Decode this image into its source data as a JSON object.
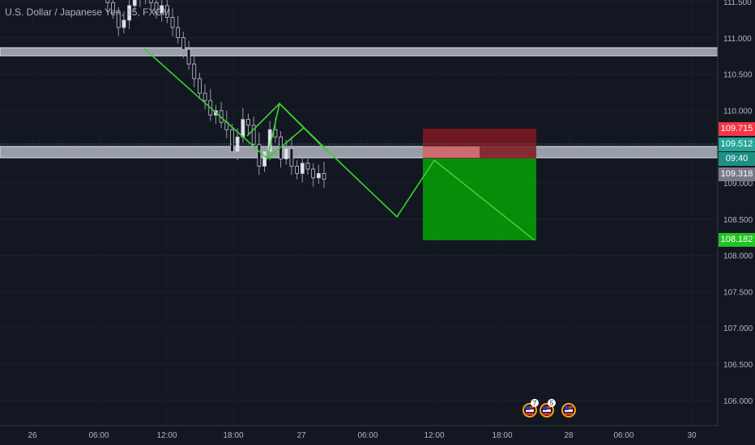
{
  "symbol_title": "U.S. Dollar / Japanese Yen, 15, FXCM",
  "price_axis": {
    "ticks": [
      "111.500",
      "111.000",
      "110.500",
      "110.000",
      "109.500",
      "109.000",
      "108.500",
      "108.000",
      "107.500",
      "107.000",
      "106.500",
      "106.000"
    ],
    "badges": {
      "stop": {
        "label": "109.715",
        "color": "#f23645"
      },
      "current": {
        "label": "109.512",
        "color": "#26a69a"
      },
      "countdown": {
        "label": "09:40",
        "color": "#26a69a"
      },
      "entry": {
        "label": "109.318",
        "color": "#787b86"
      },
      "target": {
        "label": "108.182",
        "color": "#22c322"
      }
    }
  },
  "time_axis": {
    "ticks": [
      "26",
      "06:00",
      "12:00",
      "18:00",
      "27",
      "06:00",
      "12:00",
      "18:00",
      "28",
      "06:00",
      "30",
      "12:00"
    ]
  },
  "events": [
    {
      "icon": "us-flag-icon",
      "count": "7"
    },
    {
      "icon": "us-flag-icon",
      "count": "5"
    },
    {
      "icon": "us-flag-icon",
      "count": ""
    }
  ],
  "chart_data": {
    "type": "candlestick",
    "symbol": "USDJPY",
    "interval": "15",
    "y_range": [
      105.8,
      111.5
    ],
    "closes": [
      111.48,
      111.42,
      111.38,
      111.35,
      111.33,
      111.36,
      111.31,
      111.28,
      111.3,
      111.26,
      111.22,
      111.2,
      111.24,
      111.18,
      111.12,
      111.05,
      110.98,
      110.9,
      110.8,
      110.72,
      110.65,
      110.55,
      110.6,
      110.7,
      110.78,
      110.75,
      110.8,
      110.72,
      110.65,
      110.7,
      110.62,
      110.55,
      110.48,
      110.4,
      110.3,
      110.2,
      110.1,
      110.05,
      109.95,
      109.98,
      109.9,
      109.85,
      109.7,
      109.8,
      109.92,
      109.88,
      109.75,
      109.6,
      109.7,
      109.85,
      109.8,
      109.65,
      109.72,
      109.6,
      109.55,
      109.62,
      109.58,
      109.52,
      109.55,
      109.51
    ],
    "zones": [
      {
        "name": "resistance",
        "range": [
          110.77,
          110.86
        ]
      },
      {
        "name": "support",
        "range": [
          109.33,
          109.5
        ]
      }
    ],
    "trade": {
      "entry": 109.318,
      "stop": 109.715,
      "target": 108.182
    },
    "pattern_prices": [
      110.82,
      109.35,
      110.08,
      109.35,
      109.75,
      108.52,
      109.318,
      108.182
    ]
  }
}
